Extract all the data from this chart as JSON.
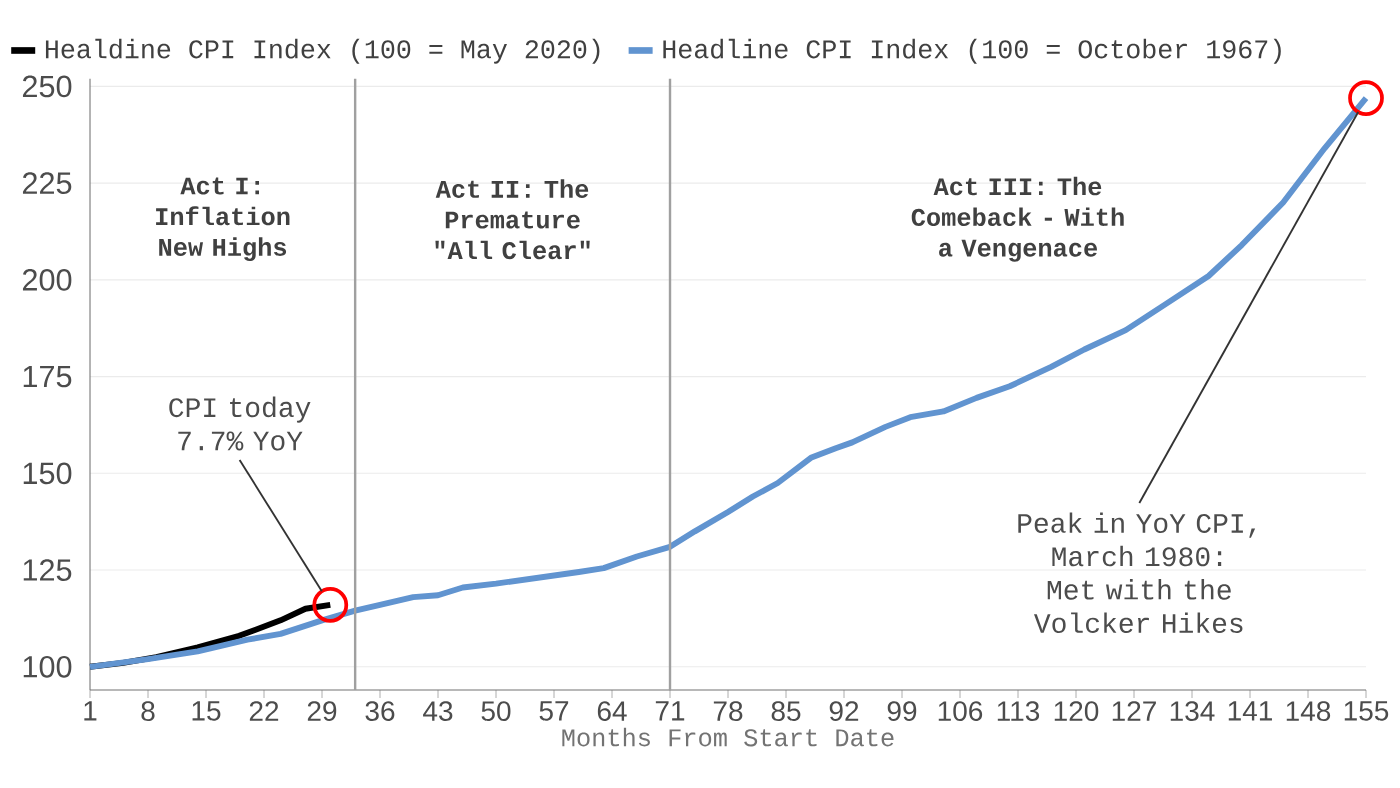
{
  "chart_data": {
    "type": "line",
    "xlabel": "Months From Start Date",
    "series": [
      {
        "name": "Healdine CPI Index (100 = May 2020)",
        "color": "#000000",
        "x": [
          1,
          5,
          9,
          14,
          19,
          24,
          27,
          30
        ],
        "values": [
          100,
          101,
          102.5,
          105,
          108,
          112,
          115,
          116
        ]
      },
      {
        "name": "Headline CPI Index (100 = October 1967)",
        "color": "#6194d0",
        "x": [
          1,
          8,
          14,
          20,
          24,
          29,
          33,
          36,
          40,
          43,
          46,
          50,
          55,
          60,
          63,
          67,
          71,
          74,
          78,
          81,
          84,
          88,
          91,
          93,
          97,
          100,
          104,
          108,
          112,
          117,
          121,
          126,
          131,
          136,
          140,
          145,
          150,
          155
        ],
        "values": [
          100,
          102,
          104,
          107,
          108.5,
          112,
          114.5,
          116,
          118,
          118.5,
          120.5,
          121.5,
          123,
          124.5,
          125.5,
          128.5,
          131,
          135,
          140,
          144,
          147.5,
          154,
          156.5,
          158,
          162,
          164.5,
          166,
          169.5,
          172.5,
          177.5,
          182,
          187,
          194,
          201,
          209,
          220,
          234,
          247
        ]
      }
    ],
    "xlim": [
      1,
      155
    ],
    "xticks": [
      1,
      8,
      15,
      22,
      29,
      36,
      43,
      50,
      57,
      64,
      71,
      78,
      85,
      92,
      99,
      106,
      113,
      120,
      127,
      134,
      141,
      148,
      155
    ],
    "ylim": [
      94,
      252
    ],
    "yticks": [
      100,
      125,
      150,
      175,
      200,
      225,
      250
    ],
    "ref_lines": [
      {
        "axis": "x",
        "value": 33,
        "color": "#a0a0a0"
      },
      {
        "axis": "x",
        "value": 71,
        "color": "#a0a0a0"
      }
    ],
    "annotations": [
      "Act I: Inflation New Highs",
      "Act II: The Premature \"All Clear\"",
      "Act III: The Comeback - With a Vengenace",
      {
        "text": "CPI today 7.7% YoY",
        "x": 30,
        "y": 116
      },
      {
        "text": "Peak in YoY CPI, March 1980: Met with the Volcker Hikes",
        "x": 155,
        "y": 247
      }
    ],
    "grid": "y",
    "legend": "top left",
    "marker": "none",
    "line_style": "solid"
  }
}
